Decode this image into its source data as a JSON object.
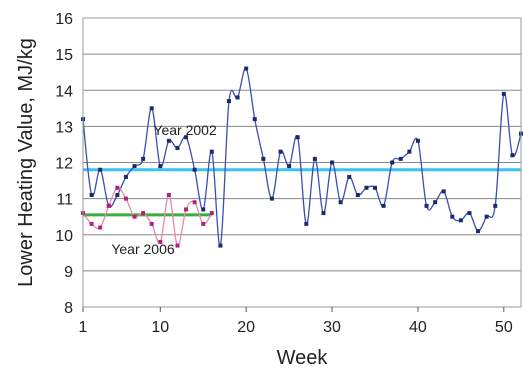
{
  "chart_data": {
    "type": "line",
    "xlabel": "Week",
    "ylabel": "Lower Heating Value, MJ/kg",
    "xlim": [
      1,
      52
    ],
    "ylim": [
      8,
      16
    ],
    "xticks": [
      1,
      10,
      20,
      30,
      40,
      50
    ],
    "yticks": [
      8,
      9,
      10,
      11,
      12,
      13,
      14,
      15,
      16
    ],
    "grid": "horizontal",
    "legend": "none",
    "annotations": [
      {
        "text": "Year 2002",
        "series": "Year 2002"
      },
      {
        "text": "Year 2006",
        "series": "Year 2006"
      }
    ],
    "series": [
      {
        "name": "Year 2002",
        "color": "#3a4fb0",
        "marker_color": "#1c2a6b",
        "x": [
          1,
          2,
          3,
          4,
          5,
          6,
          7,
          8,
          9,
          10,
          11,
          12,
          13,
          14,
          15,
          16,
          17,
          18,
          19,
          20,
          21,
          22,
          23,
          24,
          25,
          26,
          27,
          28,
          29,
          30,
          31,
          32,
          33,
          34,
          35,
          36,
          37,
          38,
          39,
          40,
          41,
          42,
          43,
          44,
          45,
          46,
          47,
          48,
          49,
          50,
          51,
          52
        ],
        "y": [
          13.2,
          11.1,
          11.8,
          10.8,
          11.1,
          11.6,
          11.9,
          12.1,
          13.5,
          11.9,
          12.6,
          12.4,
          12.7,
          11.8,
          10.7,
          12.3,
          9.7,
          13.7,
          13.8,
          14.6,
          13.2,
          12.1,
          11.0,
          12.3,
          11.9,
          12.7,
          10.3,
          12.1,
          10.6,
          12.0,
          10.9,
          11.6,
          11.1,
          11.3,
          11.3,
          10.8,
          12.0,
          12.1,
          12.3,
          12.6,
          10.8,
          10.9,
          11.2,
          10.5,
          10.4,
          10.6,
          10.1,
          10.5,
          10.8,
          13.9,
          12.2,
          12.8
        ]
      },
      {
        "name": "Year 2006",
        "color": "#e58ab0",
        "marker_color": "#b0227a",
        "x": [
          1,
          2,
          3,
          4,
          5,
          6,
          7,
          8,
          9,
          10,
          11,
          12,
          13,
          14,
          15,
          16
        ],
        "y": [
          10.6,
          10.3,
          10.2,
          10.8,
          11.3,
          11.0,
          10.5,
          10.6,
          10.3,
          9.8,
          11.1,
          9.7,
          10.7,
          10.9,
          10.3,
          10.6
        ]
      }
    ],
    "reference_lines": [
      {
        "y": 11.8,
        "color": "#38c3f0"
      },
      {
        "y": 10.55,
        "color": "#3aad3a",
        "x_range": [
          1,
          16
        ]
      }
    ]
  }
}
